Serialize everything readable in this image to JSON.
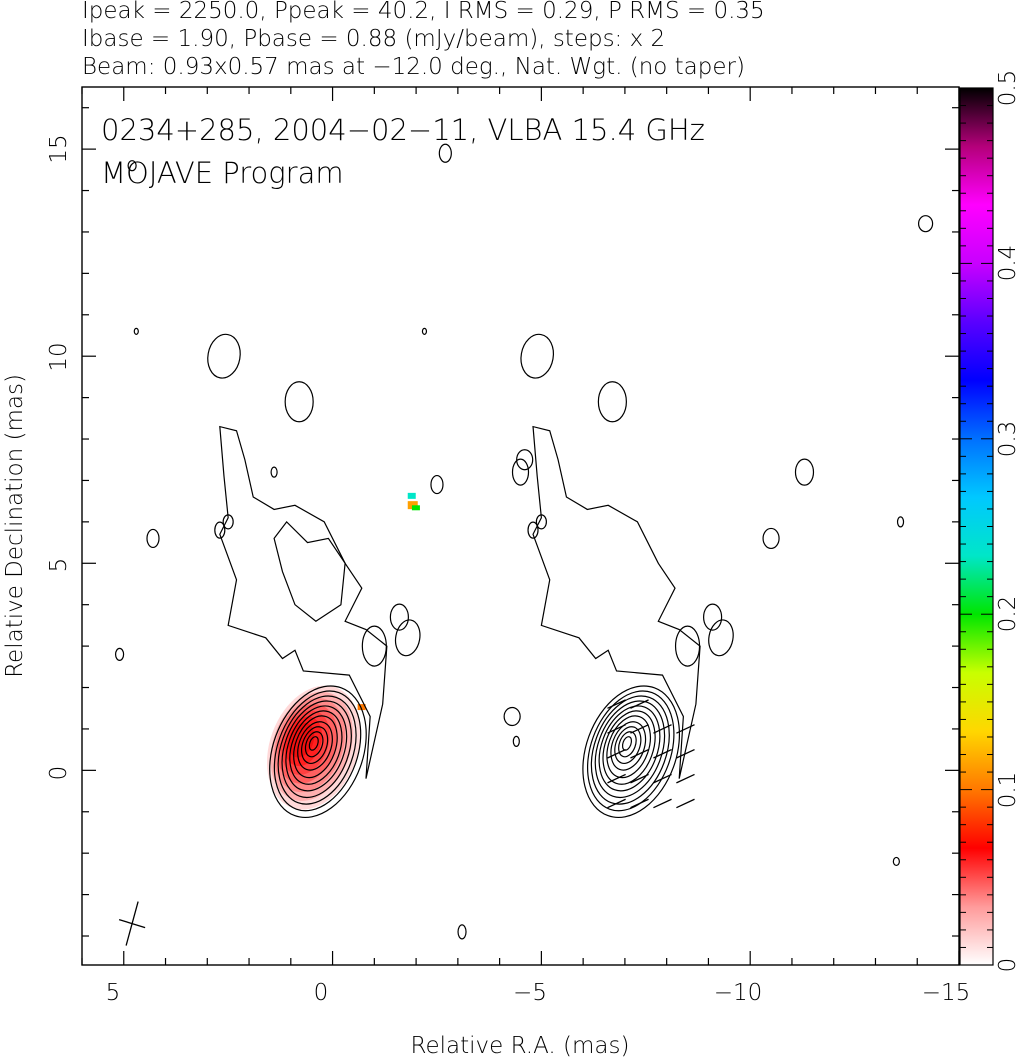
{
  "header": {
    "line1": "Ipeak = 2250.0, Ppeak = 40.2, I RMS = 0.29, P RMS = 0.35",
    "line2": "Ibase = 1.90, Pbase = 0.88 (mJy/beam), steps: x 2",
    "line3": "Beam: 0.93x0.57 mas at −12.0 deg., Nat. Wgt. (no taper)"
  },
  "chart_data": {
    "type": "heatmap",
    "source": "0234+285, 2004−02−11, VLBA 15.4 GHz",
    "program": "MOJAVE Program",
    "xlabel": "Relative R.A. (mas)",
    "ylabel": "Relative Declination (mas)",
    "xlim": [
      6.0,
      -15.0
    ],
    "ylim": [
      -4.7,
      16.5
    ],
    "x_ticks": [
      5,
      0,
      -5,
      -10,
      -15
    ],
    "x_tick_labels": [
      "5",
      "0",
      "−5",
      "−10",
      "−15"
    ],
    "y_ticks": [
      0,
      5,
      10,
      15
    ],
    "y_tick_labels": [
      "0",
      "5",
      "10",
      "15"
    ],
    "colorbar": {
      "range": [
        0,
        0.5
      ],
      "ticks": [
        0,
        0.1,
        0.2,
        0.3,
        0.4,
        0.5
      ],
      "tick_labels": [
        "0",
        "0.1",
        "0.2",
        "0.3",
        "0.4",
        "0.5"
      ],
      "colormap": [
        "#ffffff",
        "#ff9a9a",
        "#ff0000",
        "#ff7800",
        "#ffd700",
        "#c8ff00",
        "#00e600",
        "#00e6c8",
        "#00c8ff",
        "#0070ff",
        "#0000ff",
        "#5a00ff",
        "#c800ff",
        "#ff00ff",
        "#b4007a",
        "#000000"
      ]
    },
    "panels": [
      "total intensity with fractional polarization color",
      "total intensity with EVPA ticks"
    ],
    "core_position": [
      0,
      0
    ],
    "image_peak_mJy_per_beam": 2250.0,
    "polarized_peak_mJy_per_beam": 40.2,
    "I_rms": 0.29,
    "P_rms": 0.35,
    "I_base": 1.9,
    "P_base": 0.88,
    "contour_step_factor": 2,
    "beam": {
      "major_mas": 0.93,
      "minor_mas": 0.57,
      "pa_deg": -12.0
    }
  }
}
